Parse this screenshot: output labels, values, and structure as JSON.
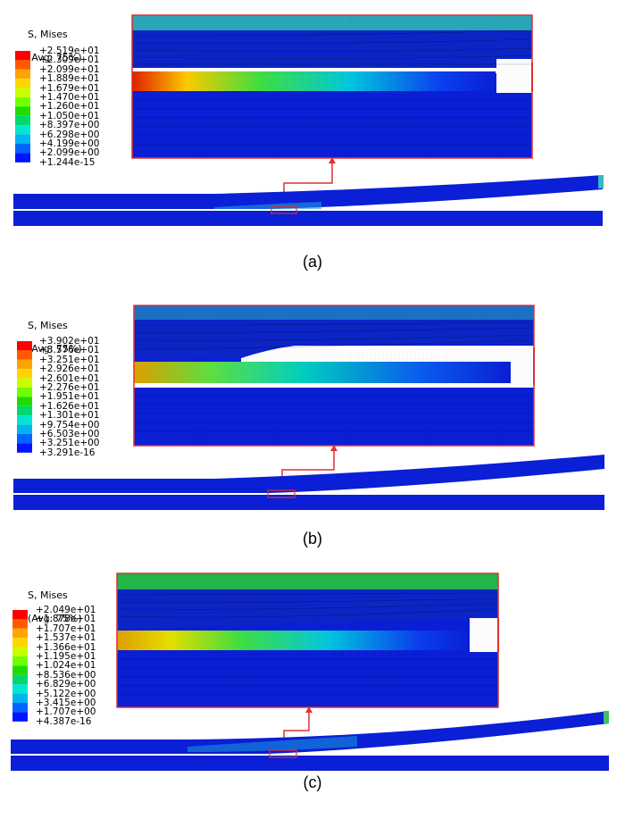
{
  "figure": {
    "panels": [
      {
        "id": "a",
        "caption": "(a)",
        "legend_title": "S, Mises",
        "legend_subtitle": "(Avg: 75%)",
        "legend_values": [
          "+2.519e+01",
          "+2.309e+01",
          "+2.099e+01",
          "+1.889e+01",
          "+1.679e+01",
          "+1.470e+01",
          "+1.260e+01",
          "+1.050e+01",
          "+8.397e+00",
          "+6.298e+00",
          "+4.199e+00",
          "+2.099e+00",
          "+1.244e-15"
        ]
      },
      {
        "id": "b",
        "caption": "(b)",
        "legend_title": "S, Mises",
        "legend_subtitle": "(Avg: 75%)",
        "legend_values": [
          "+3.902e+01",
          "+3.576e+01",
          "+3.251e+01",
          "+2.926e+01",
          "+2.601e+01",
          "+2.276e+01",
          "+1.951e+01",
          "+1.626e+01",
          "+1.301e+01",
          "+9.754e+00",
          "+6.503e+00",
          "+3.251e+00",
          "+3.291e-16"
        ]
      },
      {
        "id": "c",
        "caption": "(c)",
        "legend_title": "S, Mises",
        "legend_subtitle": "(Avg: 75%)",
        "legend_values": [
          "+2.049e+01",
          "+1.878e+01",
          "+1.707e+01",
          "+1.537e+01",
          "+1.366e+01",
          "+1.195e+01",
          "+1.024e+01",
          "+8.536e+00",
          "+6.829e+00",
          "+5.122e+00",
          "+3.415e+00",
          "+1.707e+00",
          "+4.387e-16"
        ]
      }
    ],
    "colors": {
      "contour_bands": [
        "#ff0000",
        "#ff5a00",
        "#ffa500",
        "#ffd400",
        "#c8ff00",
        "#6eff00",
        "#1edc00",
        "#00d76d",
        "#00e6d2",
        "#00b4f0",
        "#0064ff",
        "#0014ff"
      ],
      "mesh_blue": "#0a1fd6",
      "mesh_dark": "#081aa8",
      "callout_red": "#e03030",
      "panel_a_top_layer": "#2aa8b8",
      "panel_b_top_layer": "#1a72c8",
      "panel_c_top_layer": "#22b84a"
    }
  }
}
